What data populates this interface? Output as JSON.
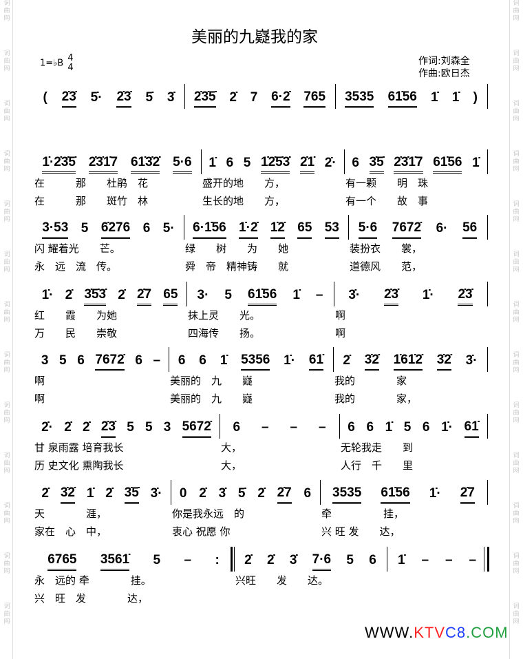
{
  "title": "美丽的九嶷我的家",
  "key": {
    "tonic": "1=♭B",
    "time_top": "4",
    "time_bottom": "4"
  },
  "credits": {
    "lyricist": "作词:刘森全",
    "composer": "作曲:欧日杰"
  },
  "side_watermark": "词\n曲\n网",
  "site": {
    "prefix": "WWW.",
    "part1": "KTV",
    "part2": "C8",
    "part3": ".COM",
    "colors": {
      "prefix": "#000000",
      "part1": "#ff2020",
      "part2": "#2040ff",
      "part3": "#20a040"
    }
  },
  "systems": [
    {
      "measures": [
        {
          "notes": [
            "(",
            "2̇3̇",
            "5̇·",
            "2̇3̇",
            "5̇",
            "3̇"
          ],
          "lyrics": []
        },
        {
          "notes": [
            "2̇3̇5̇",
            "2̇",
            "7",
            "6·2̇",
            "765"
          ],
          "lyrics": []
        },
        {
          "notes": [
            "3535",
            "61̇56",
            "1̇",
            "1̇",
            ")"
          ],
          "lyrics": []
        }
      ]
    },
    {
      "measures": [
        {
          "notes": [
            "1̇·2̇3̇5̇",
            "2̇3̇1̇7",
            "61̇3̇2̇",
            "5·6"
          ],
          "lyrics": [
            "在　　　那　　杜鹃　花",
            "在　　　那　　斑竹　林"
          ]
        },
        {
          "notes": [
            "1̇",
            "6",
            "5",
            "1̇2̇5̇3̇",
            "2̇1̇",
            "2̇·"
          ],
          "lyrics": [
            "盛开的地　　方，",
            "生长的地　　方，"
          ]
        },
        {
          "notes": [
            "6",
            "3̇5̇",
            "2̇3̇1̇7",
            "61̇56",
            "1̇"
          ],
          "lyrics": [
            "有一颗　　明　珠",
            "有一个　　故　事"
          ]
        }
      ]
    },
    {
      "measures": [
        {
          "notes": [
            "3·53",
            "5",
            "6̇276",
            "6",
            "5·"
          ],
          "lyrics": [
            "闪 耀着光　　芒。",
            "永　远　流　传。"
          ]
        },
        {
          "notes": [
            "6·1̇56",
            "1̇·2̇",
            "1̇2̇",
            "65",
            "53"
          ],
          "lyrics": [
            "绿　　树　　为　　她",
            "舜　帝　精神铸　　就"
          ]
        },
        {
          "notes": [
            "5·6",
            "7672̇",
            "6·",
            "56"
          ],
          "lyrics": [
            "装扮衣　　裳，",
            "道德风　　范，"
          ]
        }
      ]
    },
    {
      "measures": [
        {
          "notes": [
            "1̇·",
            "2̇",
            "3̇5̇3̇",
            "2̇",
            "2̇7",
            "65"
          ],
          "lyrics": [
            "红　　霞　　为她",
            "万　　民　　崇敬"
          ]
        },
        {
          "notes": [
            "3·",
            "5",
            "61̇56",
            "1̇",
            "–"
          ],
          "lyrics": [
            "抹上灵　　光。",
            "四海传　　扬。"
          ]
        },
        {
          "notes": [
            "3̇·",
            "2̇3̇",
            "1̇·",
            "2̇3̇"
          ],
          "lyrics": [
            "啊",
            "啊"
          ]
        }
      ]
    },
    {
      "measures": [
        {
          "notes": [
            "3",
            "5",
            "6",
            "7672̇",
            "6",
            "–"
          ],
          "lyrics": [
            "啊",
            "啊"
          ]
        },
        {
          "notes": [
            "6",
            "6",
            "1̇",
            "5356",
            "1̇·",
            "61̇"
          ],
          "lyrics": [
            "美丽的　九　　嶷",
            "美丽的　九　　嶷"
          ]
        },
        {
          "notes": [
            "2̇",
            "3̇2̇",
            "1̇61̇2̇",
            "3̇2̇",
            "3̇·"
          ],
          "lyrics": [
            "我的　　　　家",
            "我的　　　　家，"
          ]
        }
      ]
    },
    {
      "measures": [
        {
          "notes": [
            "2̇·",
            "2̇",
            "2̇",
            "2̇3̇",
            "5",
            "5",
            "3",
            "5672̇"
          ],
          "lyrics": [
            "甘 泉雨露 培育我长",
            "历 史文化 熏陶我长"
          ]
        },
        {
          "notes": [
            "6",
            "–",
            "–",
            "–"
          ],
          "lyrics": [
            "大，",
            "大，"
          ]
        },
        {
          "notes": [
            "6",
            "6",
            "1̇",
            "5",
            "6",
            "1̇·",
            "61̇"
          ],
          "lyrics": [
            "无轮我走　　到",
            "人行　千　　里"
          ]
        }
      ]
    },
    {
      "measures": [
        {
          "notes": [
            "2̇",
            "3̇2̇",
            "1̇",
            "2̇",
            "3̇5̇",
            "3̇·"
          ],
          "lyrics": [
            "天　　　　涯，",
            "家在　心　中，"
          ]
        },
        {
          "notes": [
            "0",
            "2̇",
            "3̇",
            "5̇",
            "2̇",
            "2̇7",
            "6"
          ],
          "lyrics": [
            "你是我永远　的",
            "衷心 祝愿 你"
          ]
        },
        {
          "notes": [
            "3535",
            "61̇56",
            "1̇·",
            "2̇7"
          ],
          "lyrics": [
            "牵　　　　　挂，",
            "兴 旺 发　　达，"
          ]
        }
      ]
    },
    {
      "measures": [
        {
          "notes": [
            "6765",
            "3561̇",
            "5",
            "–",
            ":"
          ],
          "lyrics": [
            "永　远的 牵　　　　挂。",
            "兴　旺　发　　　　达，"
          ]
        },
        {
          "notes": [
            "2̇",
            "2̇",
            "3̇",
            "7·6",
            "5",
            "6"
          ],
          "lyrics": [
            "兴旺　　发　　达。",
            ""
          ]
        },
        {
          "notes": [
            "1̇",
            "–",
            "–",
            "–"
          ],
          "lyrics": []
        }
      ]
    }
  ]
}
